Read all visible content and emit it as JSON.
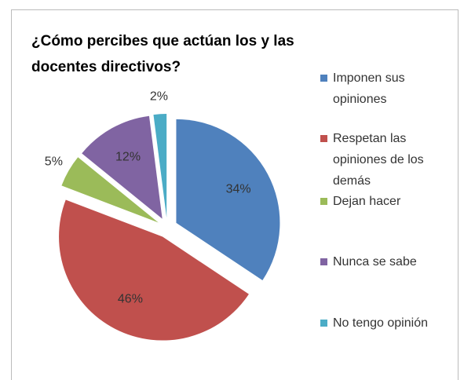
{
  "chart_data": {
    "type": "pie",
    "title": "¿Cómo percibes que actúan los y las docentes directivos?",
    "categories": [
      "Imponen sus opiniones",
      "Respetan las opiniones de los demás",
      "Dejan hacer",
      "Nunca se sabe",
      "No tengo opinión"
    ],
    "values": [
      34,
      46,
      5,
      12,
      2
    ],
    "value_labels": [
      "34%",
      "46%",
      "5%",
      "12%",
      "2%"
    ],
    "colors": [
      "#4f81bd",
      "#c0504d",
      "#9bbb59",
      "#8064a2",
      "#4bacc6"
    ],
    "legend": "right"
  }
}
